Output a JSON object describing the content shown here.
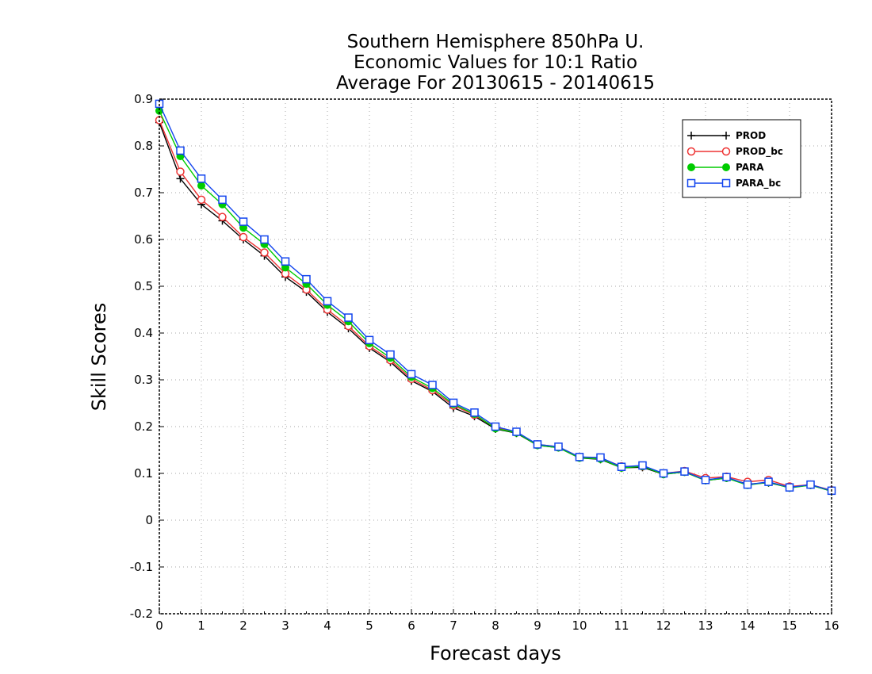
{
  "chart_data": {
    "type": "line",
    "title": [
      "Southern Hemisphere 850hPa U.",
      "Economic Values for 10:1 Ratio",
      "Average For 20130615 - 20140615"
    ],
    "xlabel": "Forecast days",
    "ylabel": "Skill Scores",
    "xlim": [
      0,
      16
    ],
    "ylim": [
      -0.2,
      0.9
    ],
    "xticks": [
      "0",
      "1",
      "2",
      "3",
      "4",
      "5",
      "6",
      "7",
      "8",
      "9",
      "10",
      "11",
      "12",
      "13",
      "14",
      "15",
      "16"
    ],
    "yticks": [
      "-0.2",
      "-0.1",
      "0",
      "0.1",
      "0.2",
      "0.3",
      "0.4",
      "0.5",
      "0.6",
      "0.7",
      "0.8",
      "0.9"
    ],
    "grid": true,
    "legend_position": "top-right",
    "x": [
      0,
      0.5,
      1,
      1.5,
      2,
      2.5,
      3,
      3.5,
      4,
      4.5,
      5,
      5.5,
      6,
      6.5,
      7,
      7.5,
      8,
      8.5,
      9,
      9.5,
      10,
      10.5,
      11,
      11.5,
      12,
      12.5,
      13,
      13.5,
      14,
      14.5,
      15,
      15.5,
      16
    ],
    "series": [
      {
        "name": "PROD",
        "color": "#000000",
        "marker": "plus",
        "values": [
          0.85,
          0.73,
          0.675,
          0.64,
          0.6,
          0.565,
          0.52,
          0.488,
          0.445,
          0.41,
          0.368,
          0.338,
          0.298,
          0.275,
          0.24,
          0.222,
          0.195,
          0.186,
          0.16,
          0.155,
          0.133,
          0.13,
          0.112,
          0.113,
          0.098,
          0.103,
          0.085,
          0.09,
          0.077,
          0.08,
          0.07,
          0.075,
          0.062
        ]
      },
      {
        "name": "PROD_bc",
        "color": "#ee3333",
        "marker": "open-circle",
        "values": [
          0.855,
          0.745,
          0.685,
          0.648,
          0.605,
          0.572,
          0.527,
          0.493,
          0.45,
          0.415,
          0.372,
          0.342,
          0.302,
          0.278,
          0.245,
          0.225,
          0.198,
          0.188,
          0.162,
          0.157,
          0.135,
          0.133,
          0.115,
          0.115,
          0.1,
          0.105,
          0.09,
          0.093,
          0.082,
          0.086,
          0.072,
          0.076,
          0.064
        ]
      },
      {
        "name": "PARA",
        "color": "#00cc00",
        "marker": "filled-circle",
        "values": [
          0.875,
          0.778,
          0.715,
          0.675,
          0.625,
          0.59,
          0.54,
          0.505,
          0.46,
          0.425,
          0.378,
          0.347,
          0.306,
          0.282,
          0.248,
          0.227,
          0.196,
          0.187,
          0.16,
          0.155,
          0.133,
          0.131,
          0.112,
          0.115,
          0.098,
          0.103,
          0.085,
          0.09,
          0.075,
          0.081,
          0.069,
          0.075,
          0.062
        ]
      },
      {
        "name": "PARA_bc",
        "color": "#1144ee",
        "marker": "open-square",
        "values": [
          0.89,
          0.79,
          0.73,
          0.685,
          0.638,
          0.6,
          0.553,
          0.515,
          0.468,
          0.433,
          0.385,
          0.354,
          0.312,
          0.289,
          0.251,
          0.23,
          0.2,
          0.189,
          0.162,
          0.157,
          0.135,
          0.134,
          0.114,
          0.117,
          0.1,
          0.104,
          0.086,
          0.092,
          0.076,
          0.082,
          0.07,
          0.076,
          0.063
        ]
      }
    ]
  }
}
